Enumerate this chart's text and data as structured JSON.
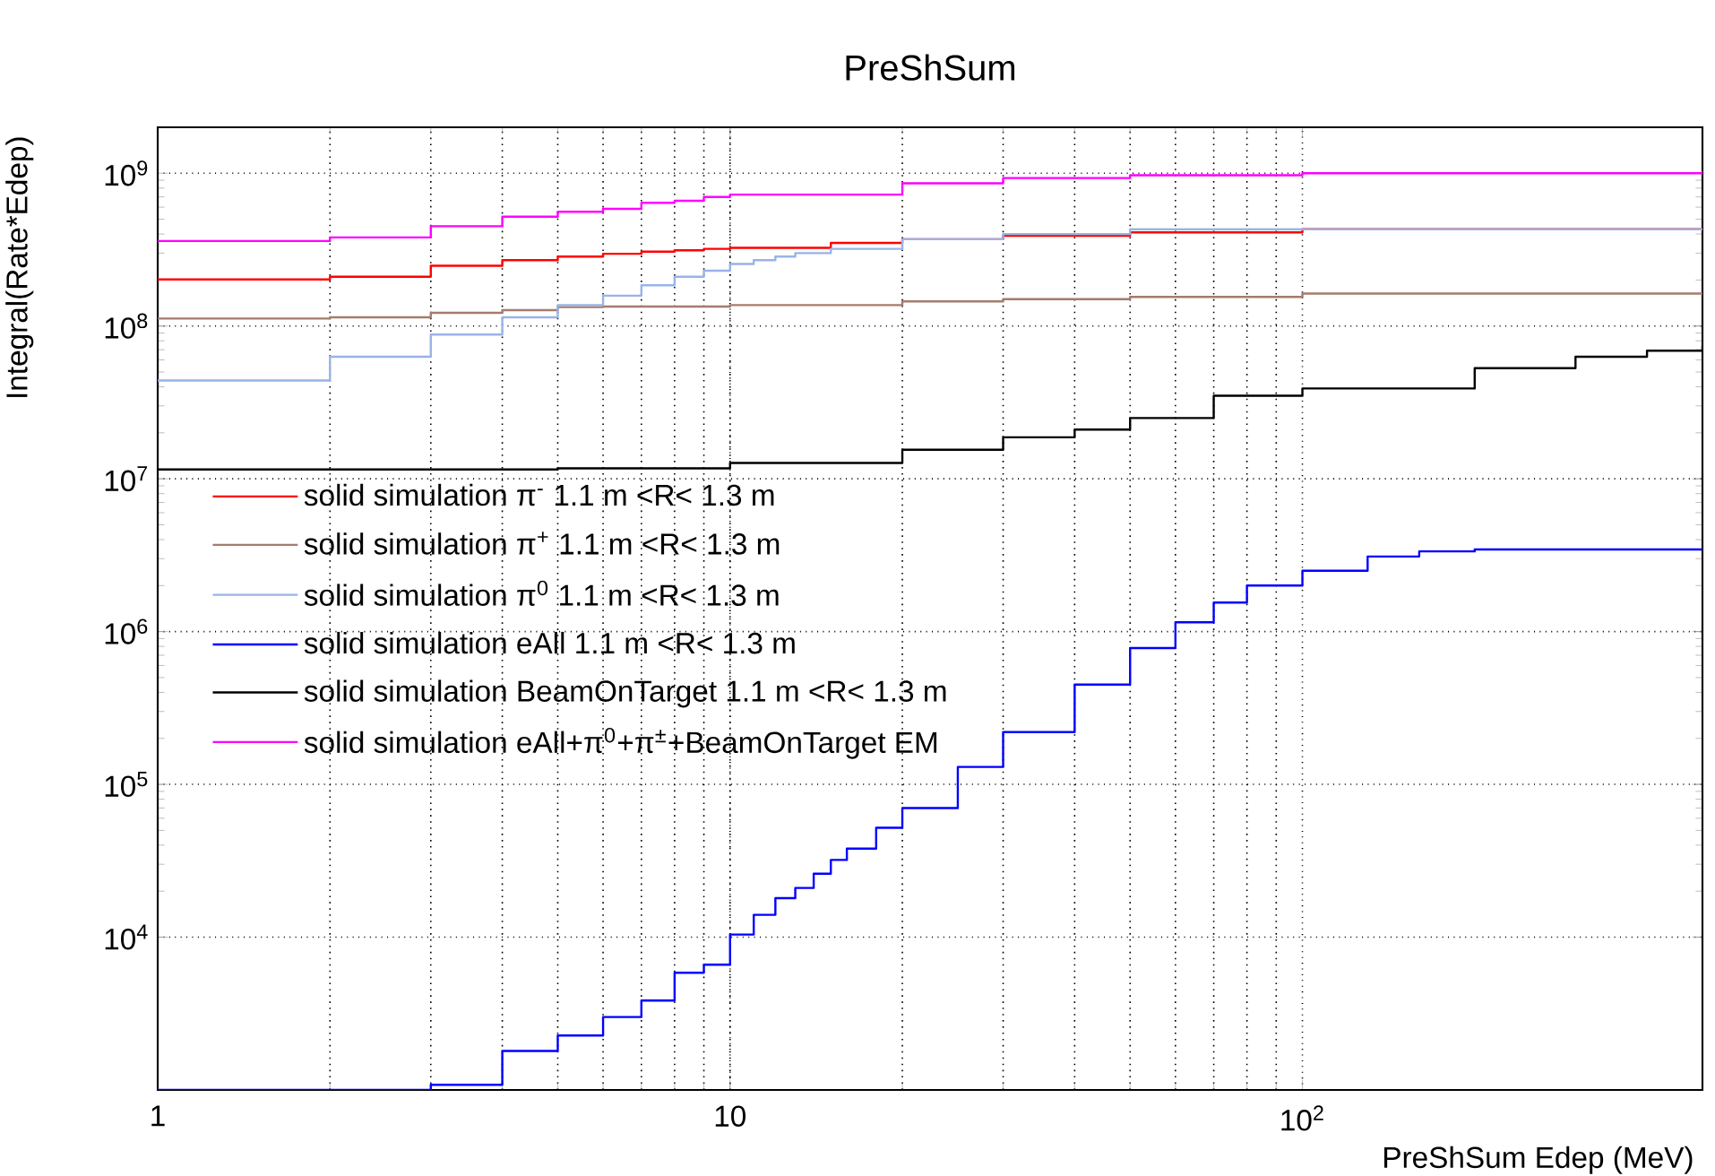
{
  "chart_data": {
    "type": "step",
    "title": "PreShSum",
    "xlabel": "PreShSum Edep (MeV)",
    "ylabel": "Integral(Rate*Edep)",
    "log": "xy",
    "grid": true,
    "legend": "left",
    "line_style": "solid",
    "marker": "none",
    "xlim": [
      1,
      500
    ],
    "ylim": [
      1000,
      2000000000
    ],
    "xticks": [
      1,
      10,
      {
        "value": 100,
        "label": "10$^{2}$"
      }
    ],
    "yticks": [
      {
        "value": 10000,
        "label": "10$^{4}$"
      },
      {
        "value": 100000,
        "label": "10$^{5}$"
      },
      {
        "value": 1000000,
        "label": "10$^{6}$"
      },
      {
        "value": 10000000,
        "label": "10$^{7}$"
      },
      {
        "value": 100000000,
        "label": "10$^{8}$"
      },
      {
        "value": 1000000000,
        "label": "10$^{9}$"
      }
    ],
    "series": [
      {
        "name": "solid simulation π$^{-}$ 1.1 m <R< 1.3 m",
        "color": "#ff0000",
        "x": [
          1,
          2,
          3,
          4,
          5,
          6,
          7,
          8,
          9,
          10,
          15,
          20,
          30,
          50,
          100,
          500
        ],
        "values": [
          202000000,
          210000000,
          248000000,
          270000000,
          285000000,
          297000000,
          307000000,
          313000000,
          320000000,
          325000000,
          350000000,
          370000000,
          390000000,
          410000000,
          430000000,
          435000000
        ]
      },
      {
        "name": "solid simulation π$^{+}$ 1.1 m <R< 1.3 m",
        "color": "#a57b6e",
        "x": [
          1,
          2,
          3,
          4,
          5,
          6,
          10,
          20,
          30,
          50,
          100,
          500
        ],
        "values": [
          112000000,
          114000000,
          122000000,
          127000000,
          133000000,
          134000000,
          137000000,
          145000000,
          150000000,
          155000000,
          163000000,
          163000000
        ]
      },
      {
        "name": "solid simulation π$^{0}$ 1.1 m <R< 1.3 m",
        "color": "#99b3e6",
        "x": [
          1,
          2,
          3,
          4,
          5,
          6,
          7,
          8,
          9,
          10,
          11,
          12,
          13,
          15,
          20,
          30,
          50,
          100,
          500
        ],
        "values": [
          44000000,
          63000000,
          88000000,
          114000000,
          137000000,
          158000000,
          185000000,
          210000000,
          230000000,
          255000000,
          270000000,
          285000000,
          300000000,
          320000000,
          370000000,
          400000000,
          430000000,
          430000000,
          425000000
        ]
      },
      {
        "name": "solid simulation eAll 1.1 m <R< 1.3 m",
        "color": "#0000ff",
        "x": [
          1,
          3,
          4,
          5,
          6,
          7,
          8,
          9,
          10,
          11,
          12,
          13,
          14,
          15,
          16,
          18,
          20,
          25,
          30,
          40,
          50,
          60,
          70,
          80,
          100,
          130,
          160,
          200,
          300,
          500
        ],
        "values": [
          1000,
          1080,
          1800,
          2270,
          3000,
          3850,
          5850,
          6600,
          10400,
          14000,
          18000,
          21000,
          26000,
          32000,
          38000,
          52000,
          70000,
          130000,
          220000,
          450000,
          780000,
          1150000,
          1550000,
          2000000,
          2500000,
          3100000,
          3350000,
          3450000,
          3450000,
          3450000
        ]
      },
      {
        "name": "solid simulation BeamOnTarget 1.1 m <R< 1.3 m",
        "color": "#000000",
        "x": [
          1,
          5,
          10,
          20,
          30,
          40,
          50,
          70,
          100,
          200,
          300,
          400,
          500
        ],
        "values": [
          11500000,
          11700000,
          12700000,
          15500000,
          18700000,
          21000000,
          25000000,
          35000000,
          39000000,
          53000000,
          63000000,
          69000000,
          74000000
        ]
      },
      {
        "name": "solid simulation eAll+π$^{0}$+π$^{±}$+BeamOnTarget EM",
        "color": "#ff00ff",
        "x": [
          1,
          2,
          3,
          4,
          5,
          6,
          7,
          8,
          9,
          10,
          20,
          30,
          50,
          100,
          500
        ],
        "values": [
          360000000,
          380000000,
          450000000,
          520000000,
          560000000,
          585000000,
          640000000,
          660000000,
          700000000,
          725000000,
          860000000,
          930000000,
          970000000,
          1000000000,
          1030000000
        ]
      }
    ]
  }
}
